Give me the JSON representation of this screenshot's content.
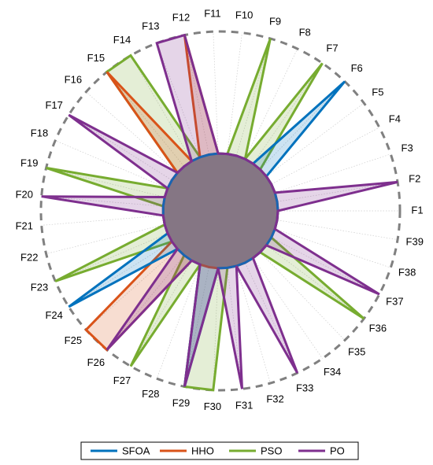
{
  "chart_data": {
    "type": "radar",
    "categories": [
      "F1",
      "F2",
      "F3",
      "F4",
      "F5",
      "F6",
      "F7",
      "F8",
      "F9",
      "F10",
      "F11",
      "F12",
      "F13",
      "F14",
      "F15",
      "F16",
      "F17",
      "F18",
      "F19",
      "F20",
      "F21",
      "F22",
      "F23",
      "F24",
      "F25",
      "F26",
      "F27",
      "F28",
      "F29",
      "F30",
      "F31",
      "F32",
      "F33",
      "F34",
      "F35",
      "F36",
      "F37",
      "F38",
      "F39"
    ],
    "rlim": [
      0,
      1
    ],
    "series": [
      {
        "name": "SFOA",
        "color": "#0072bd",
        "values": [
          0.32,
          0.32,
          0.32,
          0.32,
          0.32,
          1,
          0.32,
          0.32,
          0.32,
          0.32,
          0.32,
          0.32,
          0.32,
          0.32,
          0.32,
          0.32,
          0.32,
          0.32,
          0.32,
          0.32,
          0.32,
          0.32,
          0.32,
          1,
          0.32,
          0.32,
          0.32,
          0.32,
          1,
          0.32,
          0.32,
          0.32,
          0.32,
          0.32,
          0.32,
          0.32,
          0.32,
          0.32,
          0.32
        ]
      },
      {
        "name": "HHO",
        "color": "#d95319",
        "values": [
          0.32,
          0.32,
          0.32,
          0.32,
          0.32,
          0.32,
          0.32,
          0.32,
          0.32,
          0.32,
          0.32,
          1,
          0.32,
          0.32,
          1,
          0.32,
          0.32,
          0.32,
          0.32,
          0.32,
          0.32,
          0.32,
          0.32,
          0.32,
          1,
          1,
          0.32,
          0.32,
          0.32,
          0.32,
          0.32,
          0.32,
          0.32,
          0.32,
          0.32,
          0.32,
          0.32,
          0.32,
          0.32
        ]
      },
      {
        "name": "PSO",
        "color": "#77ac30",
        "values": [
          0.32,
          0.32,
          0.32,
          0.32,
          0.32,
          0.32,
          1,
          0.32,
          1,
          0.32,
          0.32,
          0.32,
          0.32,
          1,
          1,
          0.32,
          0.32,
          0.32,
          1,
          0.32,
          0.32,
          0.32,
          1,
          0.32,
          0.32,
          0.32,
          1,
          0.32,
          1,
          1,
          0.32,
          0.32,
          0.32,
          0.32,
          0.32,
          1,
          0.32,
          0.32,
          0.32
        ]
      },
      {
        "name": "PO",
        "color": "#7e2f8e",
        "values": [
          0.32,
          1,
          0.32,
          0.32,
          0.32,
          0.32,
          0.32,
          0.32,
          0.32,
          0.32,
          0.32,
          1,
          1,
          0.32,
          0.32,
          0.32,
          1,
          0.32,
          0.32,
          1,
          0.32,
          0.32,
          0.32,
          0.32,
          0.32,
          1,
          0.32,
          0.32,
          1,
          0.32,
          1,
          0.32,
          1,
          0.32,
          0.32,
          0.32,
          1,
          0.32,
          0.32
        ]
      }
    ]
  }
}
